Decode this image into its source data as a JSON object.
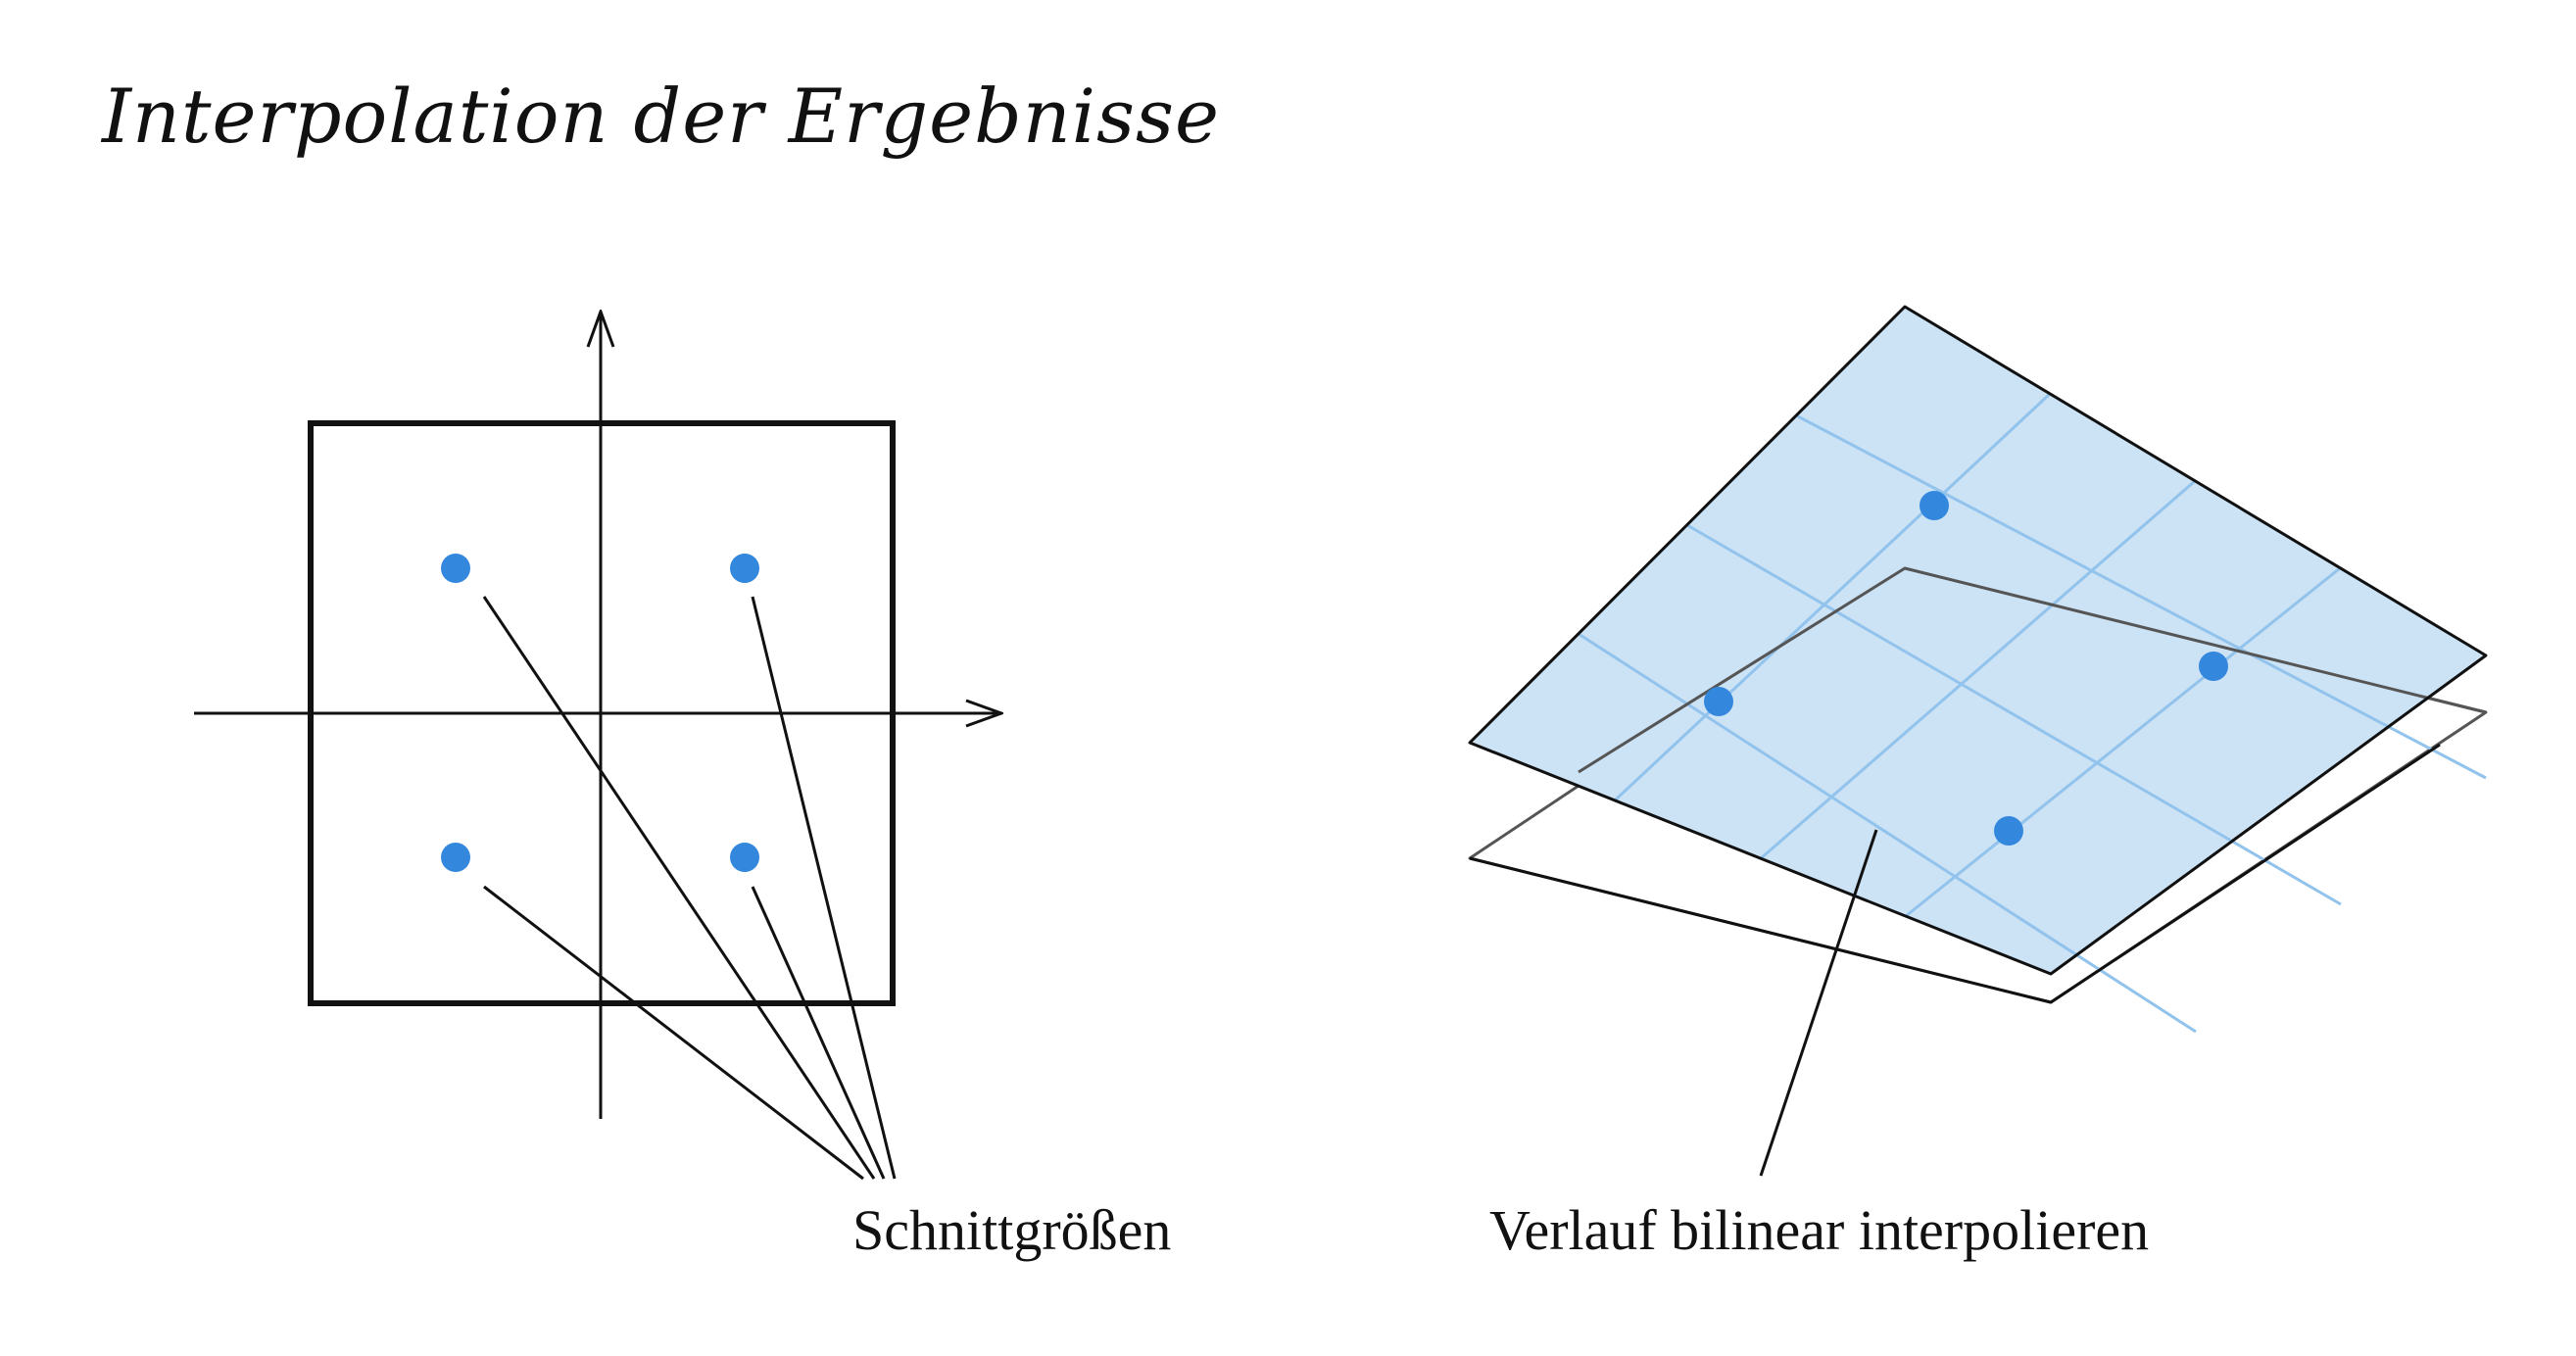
{
  "title": "Interpolation der Ergebnisse",
  "left_panel": {
    "label": "Schnittgrößen"
  },
  "right_panel": {
    "label": "Verlauf bilinear interpolieren"
  },
  "colors": {
    "ink": "#111111",
    "point": "#3388dd",
    "surface_fill": "#cce2f5",
    "grid": "#92c3ec",
    "base_plane": "#555555"
  }
}
